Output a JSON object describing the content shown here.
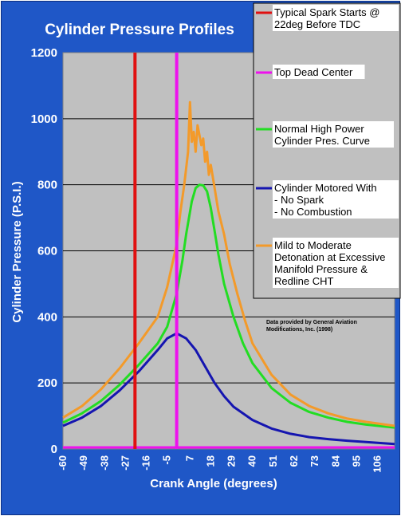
{
  "chart_data": {
    "type": "line",
    "title": "Cylinder Pressure Profiles",
    "xlabel": "Crank Angle (degrees)",
    "ylabel": "Cylinder Pressure (P.S.I.)",
    "ylim": [
      0,
      1200
    ],
    "xlim": [
      -60,
      115
    ],
    "yticks": [
      "0",
      "200",
      "400",
      "600",
      "800",
      "1000",
      "1200"
    ],
    "xtick_labels": [
      "-60",
      "-49",
      "-38",
      "-27",
      "-16",
      "-5",
      "7",
      "18",
      "29",
      "40",
      "51",
      "62",
      "73",
      "84",
      "95",
      "106"
    ],
    "xtick_values": [
      -60,
      -49,
      -38,
      -27,
      -16,
      -5,
      7,
      18,
      29,
      40,
      51,
      62,
      73,
      84,
      95,
      106
    ],
    "grid": true,
    "legend_position": "right",
    "background": "#c0c0c0",
    "vertical_lines": [
      {
        "name": "Typical Spark Starts  @ 22deg  Before TDC",
        "x": -22,
        "color": "#e01010"
      },
      {
        "name": "Top Dead Center",
        "x": 0,
        "color": "#ee11ee"
      }
    ],
    "series": [
      {
        "name": "Normal High Power Cylinder Pres. Curve",
        "color": "#22dd22",
        "x": [
          -60,
          -50,
          -40,
          -30,
          -20,
          -10,
          -5,
          0,
          3,
          5,
          8,
          10,
          12,
          14,
          16,
          18,
          20,
          22,
          25,
          30,
          35,
          40,
          50,
          60,
          70,
          80,
          90,
          100,
          115
        ],
        "y": [
          80,
          108,
          145,
          195,
          255,
          320,
          370,
          470,
          570,
          650,
          750,
          790,
          800,
          798,
          780,
          730,
          660,
          590,
          500,
          400,
          320,
          260,
          185,
          140,
          112,
          95,
          82,
          74,
          65
        ]
      },
      {
        "name": "Cylinder Motored   With\n- No Spark\n- No Combustion",
        "color": "#1515b0",
        "x": [
          -60,
          -50,
          -40,
          -30,
          -20,
          -10,
          -5,
          0,
          5,
          10,
          15,
          20,
          25,
          30,
          40,
          50,
          60,
          70,
          80,
          90,
          100,
          115
        ],
        "y": [
          70,
          95,
          130,
          178,
          235,
          300,
          335,
          350,
          335,
          300,
          250,
          200,
          160,
          128,
          88,
          62,
          46,
          36,
          30,
          25,
          21,
          15
        ]
      },
      {
        "name": "Mild to Moderate Detonation at Excessive Manifold Pressure & Redline  CHT",
        "color": "#f39a2a",
        "x": [
          -60,
          -50,
          -40,
          -30,
          -20,
          -10,
          -5,
          0,
          2,
          4,
          5,
          6,
          7,
          8,
          9,
          10,
          11,
          12,
          13,
          14,
          15,
          16,
          17,
          18,
          20,
          22,
          25,
          28,
          32,
          36,
          40,
          50,
          60,
          70,
          80,
          90,
          100,
          115
        ],
        "y": [
          95,
          130,
          180,
          245,
          320,
          400,
          490,
          620,
          720,
          800,
          850,
          900,
          1050,
          930,
          960,
          900,
          980,
          950,
          920,
          940,
          870,
          900,
          830,
          860,
          790,
          720,
          650,
          560,
          470,
          390,
          320,
          225,
          165,
          130,
          108,
          92,
          82,
          70
        ]
      }
    ],
    "annotation": "Data provided by General Aviation\nModifications, Inc.  (1998)"
  }
}
